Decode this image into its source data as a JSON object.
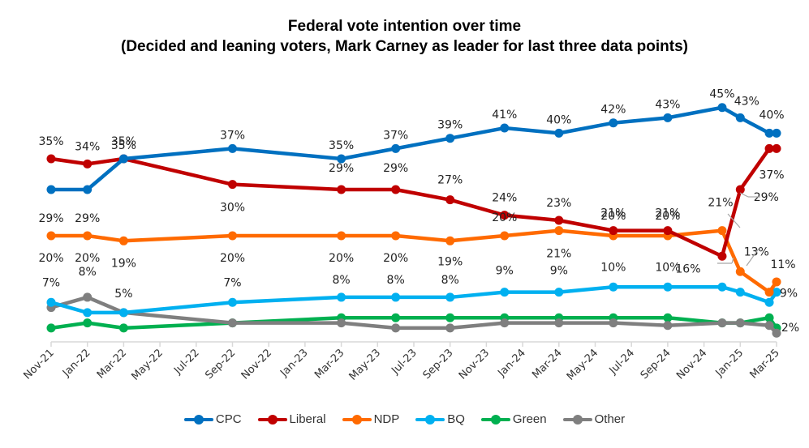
{
  "chart_data": {
    "type": "line",
    "title": "Federal vote intention over time",
    "subtitle": "(Decided and leaning voters, Mark Carney as leader for last three data points)",
    "xlabel": "",
    "ylabel": "",
    "x_tick_labels": [
      "Nov-21",
      "Jan-22",
      "Mar-22",
      "May-22",
      "Jul-22",
      "Sep-22",
      "Nov-22",
      "Jan-23",
      "Mar-23",
      "May-23",
      "Jul-23",
      "Sep-23",
      "Nov-23",
      "Jan-24",
      "Mar-24",
      "May-24",
      "Jul-24",
      "Sep-24",
      "Nov-24",
      "Jan-25",
      "Mar-25"
    ],
    "x_months_from_nov21": [
      0,
      2,
      4,
      10,
      16,
      19,
      22,
      25,
      28,
      31,
      34,
      37,
      38,
      39.6,
      40
    ],
    "ylim": [
      0,
      50
    ],
    "grid": false,
    "legend_position": "bottom",
    "series": [
      {
        "name": "CPC",
        "color": "#0070C0",
        "values": [
          29,
          29,
          35,
          37,
          35,
          37,
          39,
          41,
          40,
          42,
          43,
          45,
          43,
          40,
          40
        ],
        "labels": [
          "29%",
          "29%",
          "35%",
          "37%",
          "35%",
          "37%",
          "39%",
          "41%",
          "40%",
          "42%",
          "43%",
          "45%",
          "43%",
          "",
          "40%"
        ]
      },
      {
        "name": "Liberal",
        "color": "#C00000",
        "values": [
          35,
          34,
          35,
          30,
          29,
          29,
          27,
          24,
          23,
          21,
          21,
          16,
          29,
          37,
          37
        ],
        "labels": [
          "35%",
          "34%",
          "35%",
          "30%",
          "29%",
          "29%",
          "27%",
          "24%",
          "23%",
          "21%",
          "21%",
          "16%",
          "29%",
          "",
          "37%"
        ]
      },
      {
        "name": "NDP",
        "color": "#FF6A00",
        "values": [
          20,
          20,
          19,
          20,
          20,
          20,
          19,
          20,
          21,
          20,
          20,
          21,
          13,
          9,
          11
        ],
        "labels": [
          "20%",
          "20%",
          "19%",
          "20%",
          "20%",
          "20%",
          "19%",
          "20%",
          "21%",
          "20%",
          "20%",
          "21%",
          "13%",
          "",
          "11%"
        ]
      },
      {
        "name": "BQ",
        "color": "#00B0F0",
        "values": [
          7,
          5,
          5,
          7,
          8,
          8,
          8,
          9,
          9,
          10,
          10,
          10,
          9,
          7,
          9
        ],
        "labels": [
          "7%",
          "",
          "",
          "7%",
          "8%",
          "8%",
          "8%",
          "9%",
          "9%",
          "10%",
          "10%",
          "",
          "",
          "",
          "9%"
        ]
      },
      {
        "name": "Green",
        "color": "#00B050",
        "values": [
          2,
          3,
          2,
          3,
          4,
          4,
          4,
          4,
          4,
          4,
          4,
          3,
          3,
          4,
          2
        ],
        "labels": [
          "",
          "",
          "",
          "",
          "",
          "",
          "",
          "",
          "",
          "",
          "",
          "",
          "",
          "",
          "2%"
        ]
      },
      {
        "name": "Other",
        "color": "#7F7F7F",
        "values": [
          6,
          8,
          5,
          3,
          3,
          2,
          2,
          3,
          3,
          3,
          2.5,
          3,
          3,
          2.5,
          1
        ],
        "labels": [
          "",
          "8%",
          "5%",
          "",
          "",
          "",
          "",
          "",
          "",
          "",
          "",
          "",
          "",
          "",
          ""
        ]
      }
    ]
  }
}
